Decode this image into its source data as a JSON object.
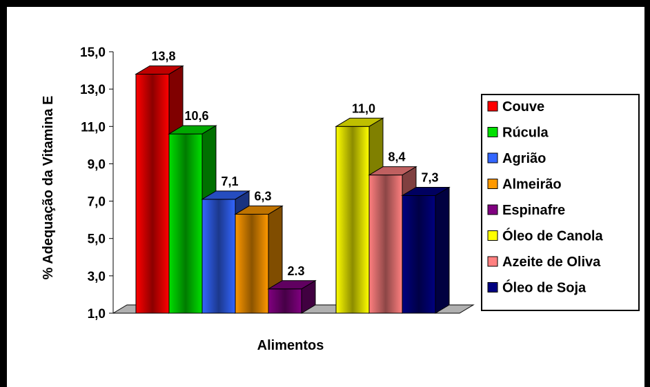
{
  "chart_data": {
    "type": "bar",
    "title": "",
    "xlabel": "Alimentos",
    "ylabel": "% Adequação da Vitamina E",
    "ylim": [
      1.0,
      15.0
    ],
    "yticks": [
      "1,0",
      "3,0",
      "5,0",
      "7,0",
      "9,0",
      "11,0",
      "13,0",
      "15,0"
    ],
    "legend_position": "right",
    "groups": [
      {
        "series": [
          {
            "name": "Couve",
            "value": 13.8,
            "label": "13,8",
            "color": "#ff0000"
          },
          {
            "name": "Rúcula",
            "value": 10.6,
            "label": "10,6",
            "color": "#00e000"
          },
          {
            "name": "Agrião",
            "value": 7.1,
            "label": "7,1",
            "color": "#3366ff"
          },
          {
            "name": "Almeirão",
            "value": 6.3,
            "label": "6,3",
            "color": "#ff9900"
          },
          {
            "name": "Espinafre",
            "value": 2.3,
            "label": "2.3",
            "color": "#800080"
          }
        ]
      },
      {
        "series": [
          {
            "name": "Óleo de Canola",
            "value": 11.0,
            "label": "11,0",
            "color": "#ffff00"
          },
          {
            "name": "Azeite de Oliva",
            "value": 8.4,
            "label": "8,4",
            "color": "#ff8080"
          },
          {
            "name": "Óleo de Soja",
            "value": 7.3,
            "label": "7,3",
            "color": "#000080"
          }
        ]
      }
    ],
    "legend": [
      {
        "name": "Couve",
        "color": "#ff0000"
      },
      {
        "name": "Rúcula",
        "color": "#00e000"
      },
      {
        "name": "Agrião",
        "color": "#3366ff"
      },
      {
        "name": "Almeirão",
        "color": "#ff9900"
      },
      {
        "name": "Espinafre",
        "color": "#800080"
      },
      {
        "name": "Óleo de Canola",
        "color": "#ffff00"
      },
      {
        "name": "Azeite de Oliva",
        "color": "#ff8080"
      },
      {
        "name": "Óleo de Soja",
        "color": "#000080"
      }
    ]
  }
}
